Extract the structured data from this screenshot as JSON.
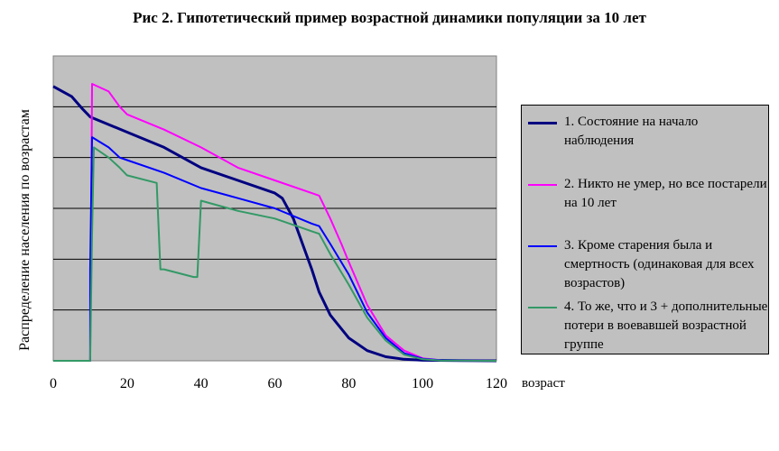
{
  "chart_data": {
    "type": "line",
    "title": "Рис 2. Гипотетический пример возрастной динамики популяции за 10 лет",
    "xlabel": "возраст",
    "ylabel": "Распределение населения по возрастам",
    "xlim": [
      0,
      120
    ],
    "ylim": [
      0,
      6
    ],
    "x_ticks": [
      "0",
      "20",
      "40",
      "60",
      "80",
      "100",
      "120"
    ],
    "grid": "horizontal",
    "legend_position": "right",
    "series": [
      {
        "name": "1. Состояние на начало наблюдения",
        "color": "#000080",
        "width": 3,
        "points": [
          [
            0,
            5.4
          ],
          [
            5,
            5.2
          ],
          [
            8,
            4.95
          ],
          [
            10,
            4.8
          ],
          [
            20,
            4.5
          ],
          [
            30,
            4.2
          ],
          [
            40,
            3.8
          ],
          [
            50,
            3.55
          ],
          [
            60,
            3.3
          ],
          [
            62,
            3.2
          ],
          [
            65,
            2.8
          ],
          [
            67,
            2.4
          ],
          [
            70,
            1.8
          ],
          [
            72,
            1.35
          ],
          [
            75,
            0.9
          ],
          [
            80,
            0.45
          ],
          [
            85,
            0.2
          ],
          [
            90,
            0.08
          ],
          [
            95,
            0.03
          ],
          [
            100,
            0.01
          ],
          [
            120,
            0
          ]
        ]
      },
      {
        "name": "2. Никто не умер, но все постарели на 10 лет",
        "color": "#ff00ff",
        "width": 2,
        "points": [
          [
            0,
            0
          ],
          [
            10,
            0
          ],
          [
            10.5,
            5.45
          ],
          [
            15,
            5.3
          ],
          [
            18,
            5
          ],
          [
            20,
            4.85
          ],
          [
            30,
            4.55
          ],
          [
            40,
            4.2
          ],
          [
            50,
            3.8
          ],
          [
            60,
            3.55
          ],
          [
            70,
            3.3
          ],
          [
            72,
            3.25
          ],
          [
            75,
            2.8
          ],
          [
            78,
            2.3
          ],
          [
            80,
            1.95
          ],
          [
            85,
            1.1
          ],
          [
            90,
            0.5
          ],
          [
            95,
            0.2
          ],
          [
            100,
            0.05
          ],
          [
            105,
            0.01
          ],
          [
            120,
            0
          ]
        ]
      },
      {
        "name": "3. Кроме старения была и смертность (одинаковая для всех возрастов)",
        "color": "#0000ff",
        "width": 2,
        "points": [
          [
            0,
            0
          ],
          [
            10,
            0
          ],
          [
            10,
            1.8
          ],
          [
            10.5,
            4.4
          ],
          [
            15,
            4.2
          ],
          [
            18,
            4.0
          ],
          [
            20,
            3.95
          ],
          [
            30,
            3.7
          ],
          [
            40,
            3.4
          ],
          [
            50,
            3.2
          ],
          [
            60,
            3.0
          ],
          [
            70,
            2.7
          ],
          [
            72,
            2.65
          ],
          [
            75,
            2.3
          ],
          [
            80,
            1.7
          ],
          [
            85,
            0.95
          ],
          [
            90,
            0.45
          ],
          [
            95,
            0.15
          ],
          [
            100,
            0.04
          ],
          [
            105,
            0.01
          ],
          [
            120,
            0
          ]
        ]
      },
      {
        "name": "4. То же, что и 3  + дополнительные потери в воевавшей возрастной группе",
        "color": "#339966",
        "width": 2,
        "points": [
          [
            0,
            0
          ],
          [
            10,
            0
          ],
          [
            10.5,
            2.5
          ],
          [
            11,
            4.2
          ],
          [
            15,
            4.0
          ],
          [
            18,
            3.8
          ],
          [
            20,
            3.65
          ],
          [
            28,
            3.5
          ],
          [
            29,
            1.8
          ],
          [
            30,
            1.8
          ],
          [
            38,
            1.65
          ],
          [
            39,
            1.65
          ],
          [
            40,
            3.15
          ],
          [
            50,
            2.95
          ],
          [
            60,
            2.8
          ],
          [
            70,
            2.55
          ],
          [
            72,
            2.5
          ],
          [
            75,
            2.1
          ],
          [
            80,
            1.5
          ],
          [
            85,
            0.85
          ],
          [
            90,
            0.4
          ],
          [
            95,
            0.12
          ],
          [
            100,
            0.03
          ],
          [
            105,
            0.005
          ],
          [
            120,
            0
          ]
        ]
      }
    ]
  }
}
